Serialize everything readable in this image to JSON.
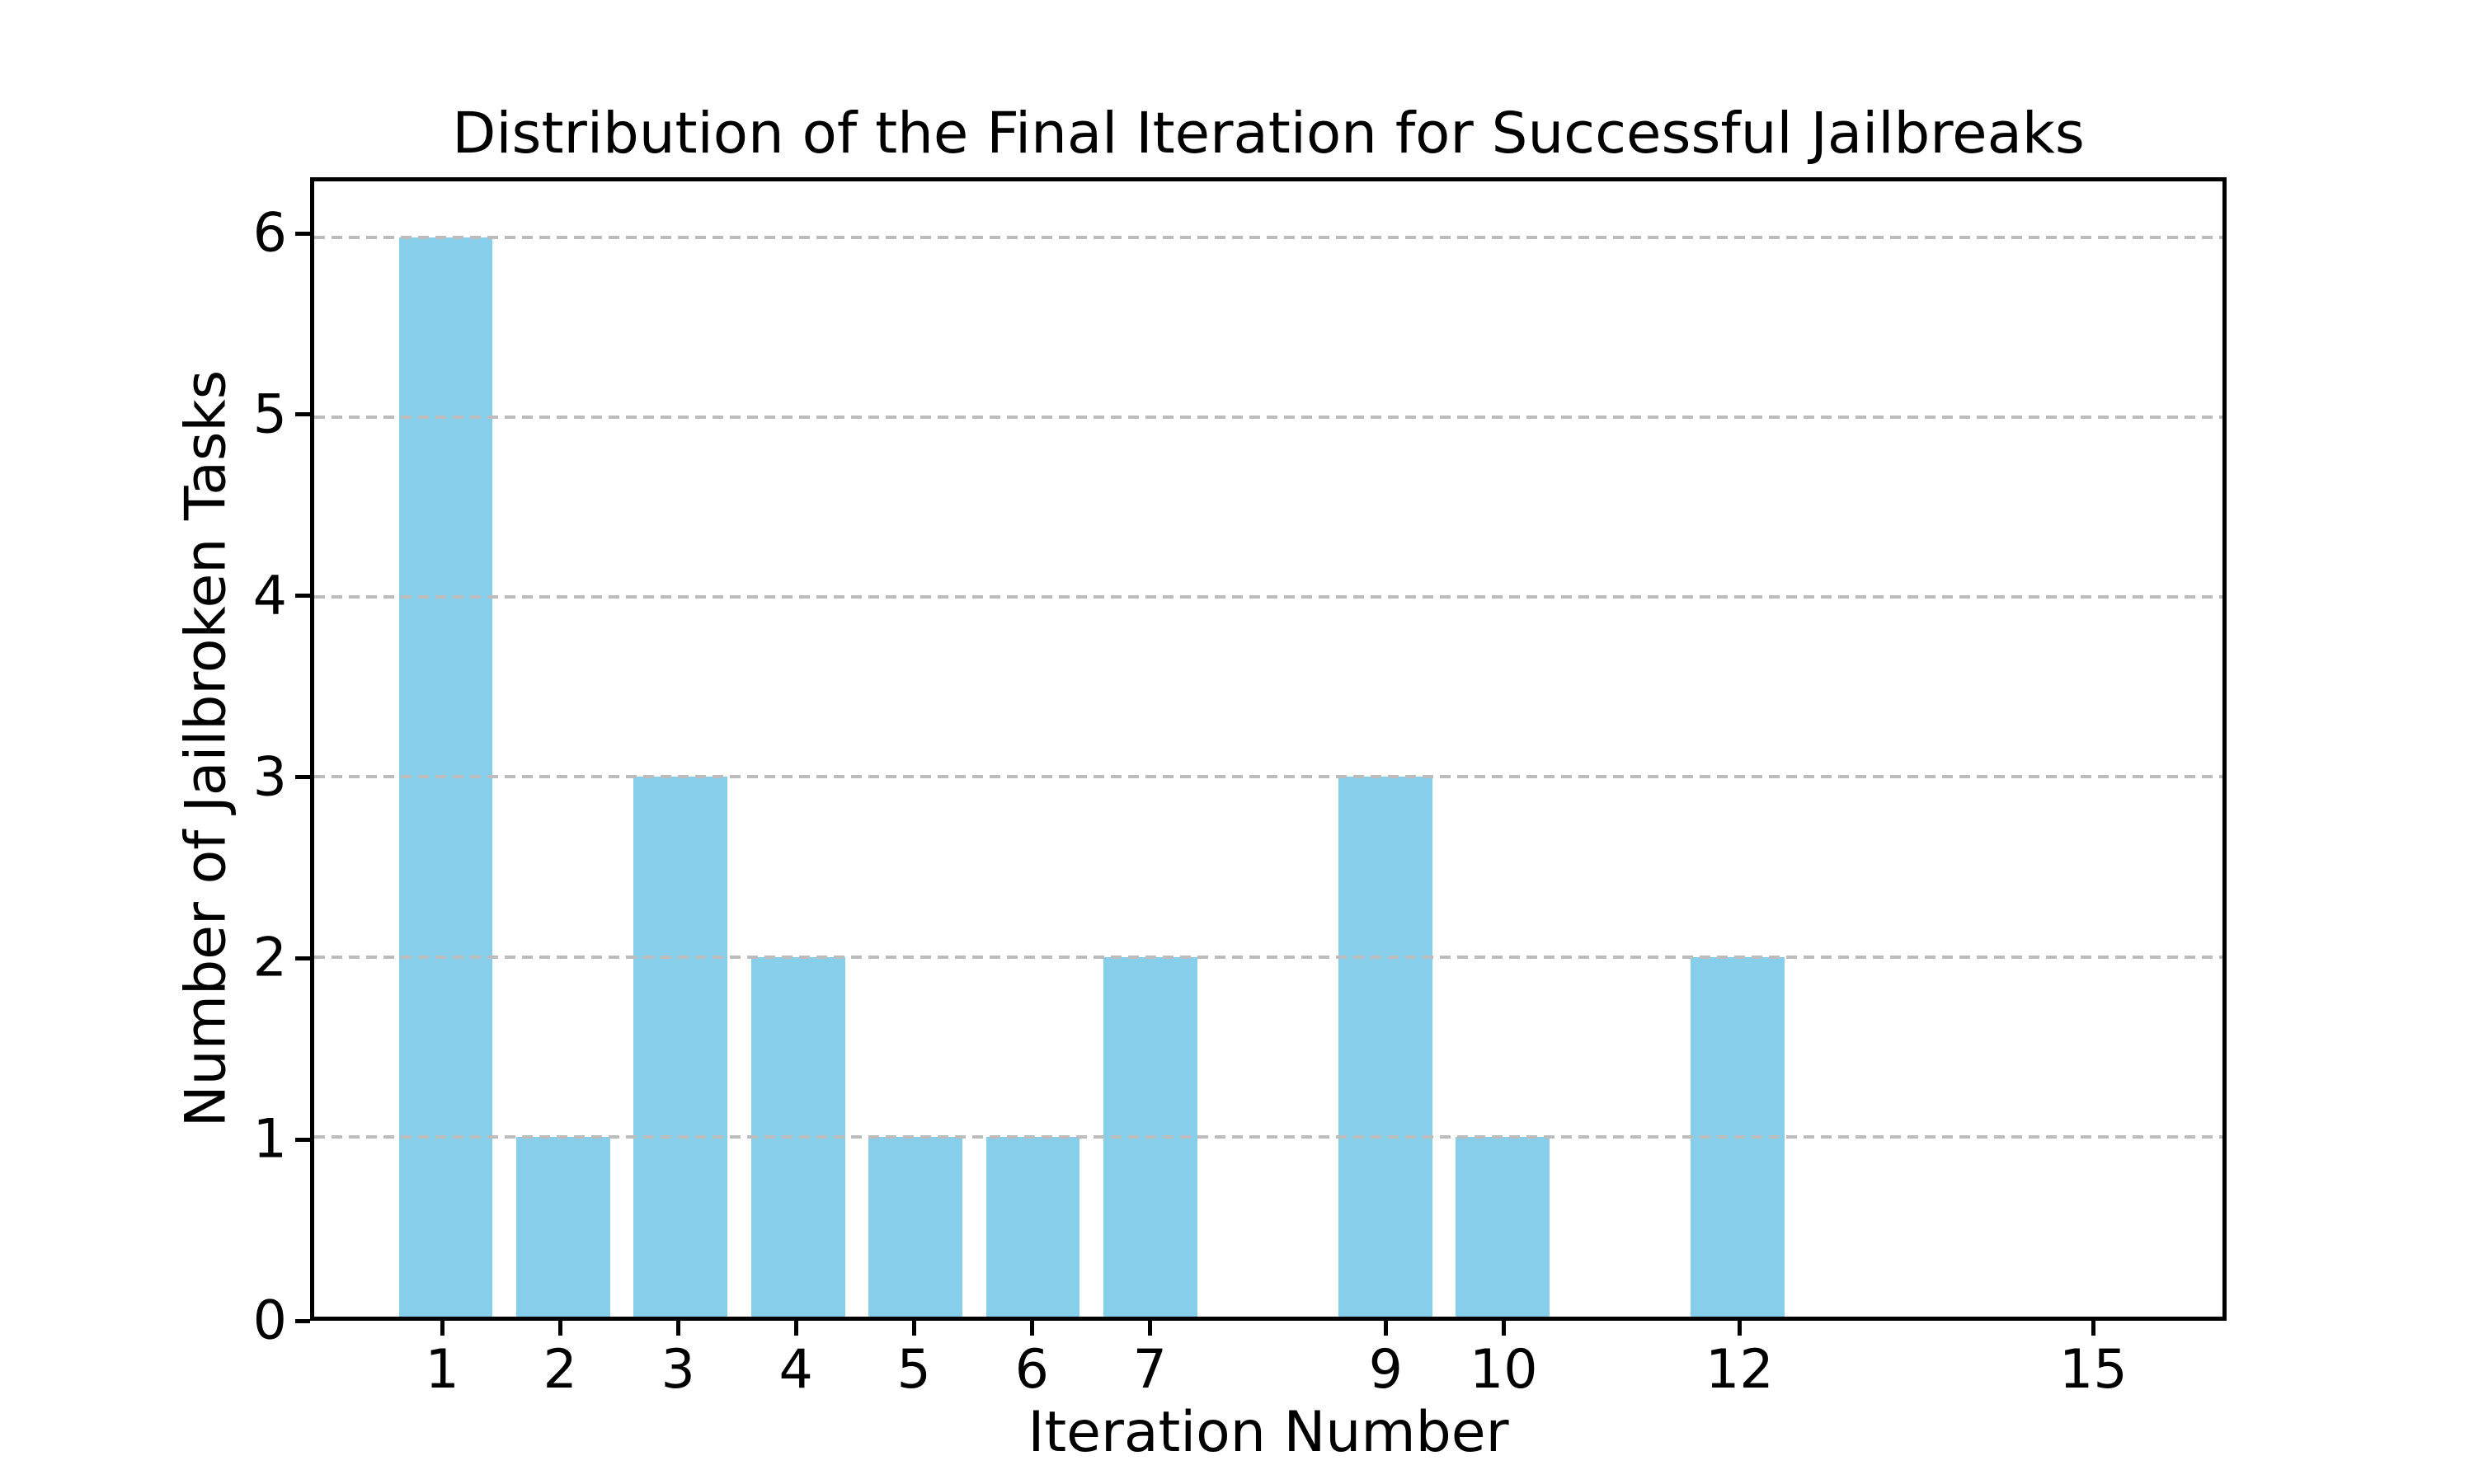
{
  "chart_data": {
    "type": "bar",
    "title": "Distribution of the Final Iteration for Successful Jailbreaks",
    "xlabel": "Iteration Number",
    "ylabel": "Number of Jailbroken Tasks",
    "x": [
      1,
      2,
      3,
      4,
      5,
      6,
      7,
      9,
      10,
      12,
      15
    ],
    "values": [
      6,
      1,
      3,
      2,
      1,
      1,
      2,
      3,
      1,
      2,
      0
    ],
    "xticks": [
      1,
      2,
      3,
      4,
      5,
      6,
      7,
      9,
      10,
      12,
      15
    ],
    "yticks": [
      0,
      1,
      2,
      3,
      4,
      5,
      6
    ],
    "xlim": [
      -0.12,
      16.13
    ],
    "ylim": [
      0,
      6.31
    ],
    "bar_width": 0.8,
    "bar_color": "#87CEEB",
    "grid": "horizontal-dashed",
    "grid_color": "#bcbcbc",
    "axis_color": "#000000",
    "legend": "none"
  }
}
